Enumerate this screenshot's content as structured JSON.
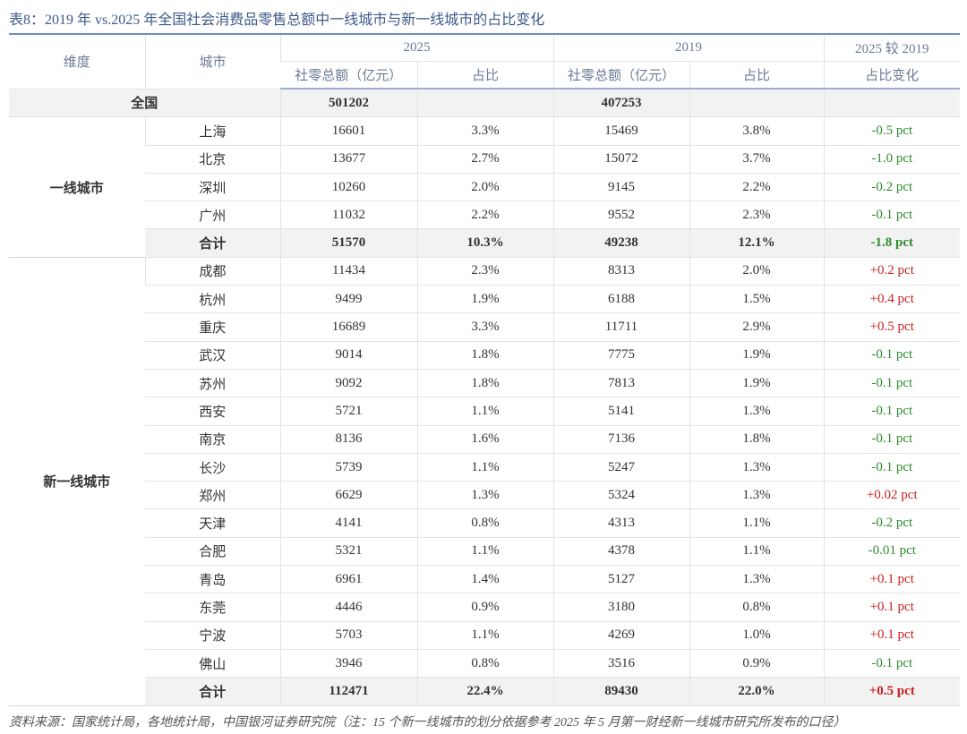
{
  "title": "表8：2019 年 vs.2025 年全国社会消费品零售总额中一线城市与新一线城市的占比变化",
  "table": {
    "header_rows": [
      [
        "维度",
        "城市",
        "2025",
        "2019",
        "2025 较 2019"
      ],
      [
        "社零总额（亿元）",
        "占比",
        "社零总额（亿元）",
        "占比",
        "占比变化"
      ]
    ],
    "national": [
      "全国",
      "501202",
      "",
      "407253",
      "",
      ""
    ],
    "groups": [
      {
        "name": "一线城市",
        "rows": [
          [
            "上海",
            "16601",
            "3.3%",
            "15469",
            "3.8%",
            "-0.5 pct"
          ],
          [
            "北京",
            "13677",
            "2.7%",
            "15072",
            "3.7%",
            "-1.0 pct"
          ],
          [
            "深圳",
            "10260",
            "2.0%",
            "9145",
            "2.2%",
            "-0.2 pct"
          ],
          [
            "广州",
            "11032",
            "2.2%",
            "9552",
            "2.3%",
            "-0.1 pct"
          ]
        ],
        "total": [
          "合计",
          "51570",
          "10.3%",
          "49238",
          "12.1%",
          "-1.8 pct"
        ]
      },
      {
        "name": "新一线城市",
        "rows": [
          [
            "成都",
            "11434",
            "2.3%",
            "8313",
            "2.0%",
            "+0.2 pct"
          ],
          [
            "杭州",
            "9499",
            "1.9%",
            "6188",
            "1.5%",
            "+0.4 pct"
          ],
          [
            "重庆",
            "16689",
            "3.3%",
            "11711",
            "2.9%",
            "+0.5 pct"
          ],
          [
            "武汉",
            "9014",
            "1.8%",
            "7775",
            "1.9%",
            "-0.1 pct"
          ],
          [
            "苏州",
            "9092",
            "1.8%",
            "7813",
            "1.9%",
            "-0.1 pct"
          ],
          [
            "西安",
            "5721",
            "1.1%",
            "5141",
            "1.3%",
            "-0.1 pct"
          ],
          [
            "南京",
            "8136",
            "1.6%",
            "7136",
            "1.8%",
            "-0.1 pct"
          ],
          [
            "长沙",
            "5739",
            "1.1%",
            "5247",
            "1.3%",
            "-0.1 pct"
          ],
          [
            "郑州",
            "6629",
            "1.3%",
            "5324",
            "1.3%",
            "+0.02 pct"
          ],
          [
            "天津",
            "4141",
            "0.8%",
            "4313",
            "1.1%",
            "-0.2 pct"
          ],
          [
            "合肥",
            "5321",
            "1.1%",
            "4378",
            "1.1%",
            "-0.01 pct"
          ],
          [
            "青岛",
            "6961",
            "1.4%",
            "5127",
            "1.3%",
            "+0.1 pct"
          ],
          [
            "东莞",
            "4446",
            "0.9%",
            "3180",
            "0.8%",
            "+0.1 pct"
          ],
          [
            "宁波",
            "5703",
            "1.1%",
            "4269",
            "1.0%",
            "+0.1 pct"
          ],
          [
            "佛山",
            "3946",
            "0.8%",
            "3516",
            "0.9%",
            "-0.1 pct"
          ]
        ],
        "total": [
          "合计",
          "112471",
          "22.4%",
          "89430",
          "22.0%",
          "+0.5 pct"
        ]
      }
    ]
  },
  "source": "资料来源：国家统计局，各地统计局，中国银河证券研究院（注：15 个新一线城市的划分依据参考 2025 年 5 月第一财经新一线城市研究所发布的口径）"
}
